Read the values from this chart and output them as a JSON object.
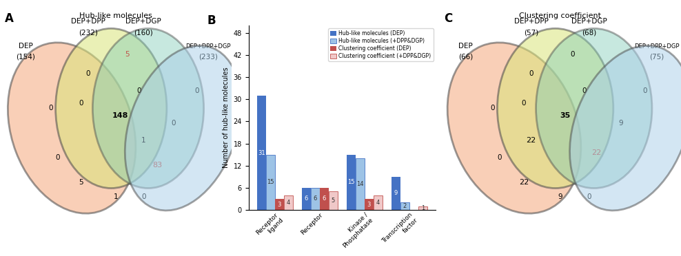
{
  "panel_A": {
    "title": "Hub-like molecules",
    "dep_label1": "DEP",
    "dep_label2": "(154)",
    "dpp_label1": "DEP+DPP",
    "dpp_label2": "(232)",
    "dgp_label1": "DEP+DGP",
    "dgp_label2": "(160)",
    "all_label1": "DEP+DPP+DGP",
    "all_label2": "(233)",
    "dep_color": "#F5A97D",
    "dpp_color": "#D9E47A",
    "dgp_color": "#83CDB8",
    "all_color": "#A8CEE8",
    "edge_color": "#4A4A4A",
    "numbers": [
      [
        3.8,
        7.2,
        "0",
        "black"
      ],
      [
        5.5,
        8.0,
        "5",
        "#C05048"
      ],
      [
        8.5,
        6.5,
        "0",
        "black"
      ],
      [
        2.2,
        5.8,
        "0",
        "black"
      ],
      [
        3.5,
        6.0,
        "0",
        "black"
      ],
      [
        6.0,
        6.5,
        "0",
        "black"
      ],
      [
        7.5,
        5.2,
        "0",
        "black"
      ],
      [
        2.5,
        3.8,
        "0",
        "black"
      ],
      [
        5.2,
        5.5,
        "148",
        "black"
      ],
      [
        6.2,
        4.5,
        "1",
        "black"
      ],
      [
        6.8,
        3.5,
        "83",
        "#C05048"
      ],
      [
        3.5,
        2.8,
        "5",
        "black"
      ],
      [
        5.0,
        2.2,
        "1",
        "black"
      ],
      [
        6.2,
        2.2,
        "0",
        "black"
      ]
    ]
  },
  "panel_B": {
    "ylabel": "Number of hub-like molecules",
    "categories": [
      "Receptor ligand",
      "Receptor",
      "Kinase / Phosphatase",
      "Transcription factor"
    ],
    "hub_dep": [
      31,
      6,
      15,
      9
    ],
    "hub_plus": [
      15,
      6,
      14,
      2
    ],
    "cc_dep": [
      3,
      6,
      3,
      0
    ],
    "cc_plus": [
      4,
      5,
      4,
      1
    ],
    "hub_dep_color": "#4472C4",
    "hub_plus_color": "#9DC3E6",
    "cc_dep_color": "#C0504D",
    "cc_plus_color": "#F0C8C8",
    "legend": [
      "Hub-like molecules (DEP)",
      "Hub-like molecules (+DPP&DGP)",
      "Clustering coefficient (DEP)",
      "Clustering coefficient (+DPP&DGP)"
    ],
    "yticks": [
      0,
      6,
      12,
      18,
      24,
      30,
      36,
      42,
      48
    ],
    "ymax": 50
  },
  "panel_C": {
    "title": "Clustering coefficient",
    "dep_label1": "DEP",
    "dep_label2": "(66)",
    "dpp_label1": "DEP+DPP",
    "dpp_label2": "(57)",
    "dgp_label1": "DEP+DGP",
    "dgp_label2": "(68)",
    "all_label1": "DEP+DPP+DGP",
    "all_label2": "(75)",
    "numbers": [
      [
        3.8,
        7.2,
        "0",
        "black"
      ],
      [
        5.5,
        8.0,
        "0",
        "black"
      ],
      [
        8.5,
        6.5,
        "0",
        "black"
      ],
      [
        2.2,
        5.8,
        "0",
        "black"
      ],
      [
        3.5,
        6.0,
        "0",
        "black"
      ],
      [
        6.0,
        6.5,
        "0",
        "black"
      ],
      [
        7.5,
        5.2,
        "9",
        "black"
      ],
      [
        2.5,
        3.8,
        "0",
        "black"
      ],
      [
        5.2,
        5.5,
        "35",
        "black"
      ],
      [
        3.8,
        4.5,
        "22",
        "black"
      ],
      [
        6.5,
        4.0,
        "22",
        "#C05048"
      ],
      [
        3.5,
        2.8,
        "22",
        "black"
      ],
      [
        5.0,
        2.2,
        "9",
        "black"
      ],
      [
        6.2,
        2.2,
        "0",
        "black"
      ]
    ]
  }
}
